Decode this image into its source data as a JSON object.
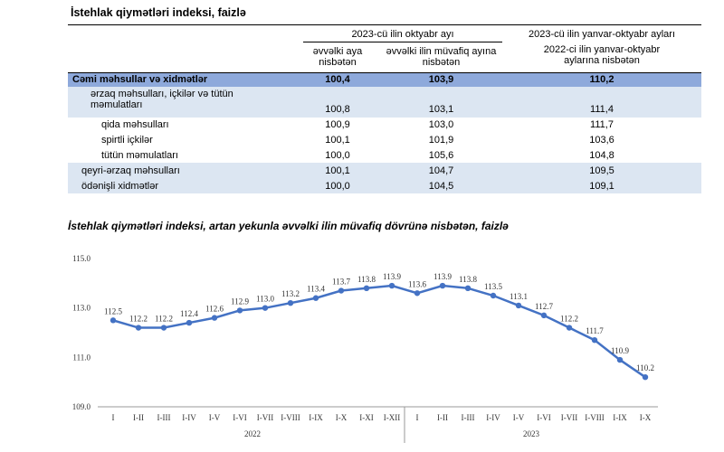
{
  "table": {
    "title": "İstehlak qiymətləri indeksi, faizlə",
    "header": {
      "group1": "2023-cü ilin oktyabr ayı",
      "col1": "əvvəlki aya nisbətən",
      "col2": "əvvəlki ilin müvafiq ayına nisbətən",
      "group2": "2023-cü ilin yanvar-oktyabr ayları",
      "col3": "2022-ci ilin yanvar-oktyabr aylarına nisbətən"
    },
    "rows": [
      [
        "Cəmi məhsullar və xidmətlər",
        "100,4",
        "103,9",
        "110,2"
      ],
      [
        "ərzaq məhsulları, içkilər və tütün məmulatları",
        "100,8",
        "103,1",
        "111,4"
      ],
      [
        "qida məhsulları",
        "100,9",
        "103,0",
        "111,7"
      ],
      [
        "spirtli içkilər",
        "100,1",
        "101,9",
        "103,6"
      ],
      [
        "tütün məmulatları",
        "100,0",
        "105,6",
        "104,8"
      ],
      [
        "qeyri-ərzaq məhsulları",
        "100,1",
        "104,7",
        "109,5"
      ],
      [
        "ödənişli xidmətlər",
        "100,0",
        "104,5",
        "109,1"
      ]
    ]
  },
  "chart_data": {
    "type": "line",
    "title": "İstehlak qiymətləri indeksi, artan yekunla əvvəlki ilin müvafiq dövrünə nisbətən, faizlə",
    "categories": [
      "I",
      "I-II",
      "I-III",
      "I-IV",
      "I-V",
      "I-VI",
      "I-VII",
      "I-VIII",
      "I-IX",
      "I-X",
      "I-XI",
      "I-XII",
      "I",
      "I-II",
      "I-III",
      "I-IV",
      "I-V",
      "I-VI",
      "I-VII",
      "I-VIII",
      "I-IX",
      "I-X"
    ],
    "values": [
      112.5,
      112.2,
      112.2,
      112.4,
      112.6,
      112.9,
      113.0,
      113.2,
      113.4,
      113.7,
      113.8,
      113.9,
      113.6,
      113.9,
      113.8,
      113.5,
      113.1,
      112.7,
      112.2,
      111.7,
      110.9,
      110.2
    ],
    "value_labels": [
      "112.5",
      "112.2",
      "112.2",
      "112.4",
      "112.6",
      "112.9",
      "113.0",
      "113.2",
      "113.4",
      "113.7",
      "113.8",
      "113.9",
      "113.6",
      "113.9",
      "113.8",
      "113.5",
      "113.1",
      "112.7",
      "112.2",
      "111.7",
      "110.9",
      "110.2"
    ],
    "year_groups": [
      "2022",
      "2023"
    ],
    "color": "#4472c4",
    "ylim": [
      109,
      115
    ],
    "yticks": [
      {
        "value": 109,
        "label": "109.0"
      },
      {
        "value": 111,
        "label": "111.0"
      },
      {
        "value": 113,
        "label": "113.0"
      },
      {
        "value": 115,
        "label": "115.0"
      }
    ],
    "grid": false
  }
}
